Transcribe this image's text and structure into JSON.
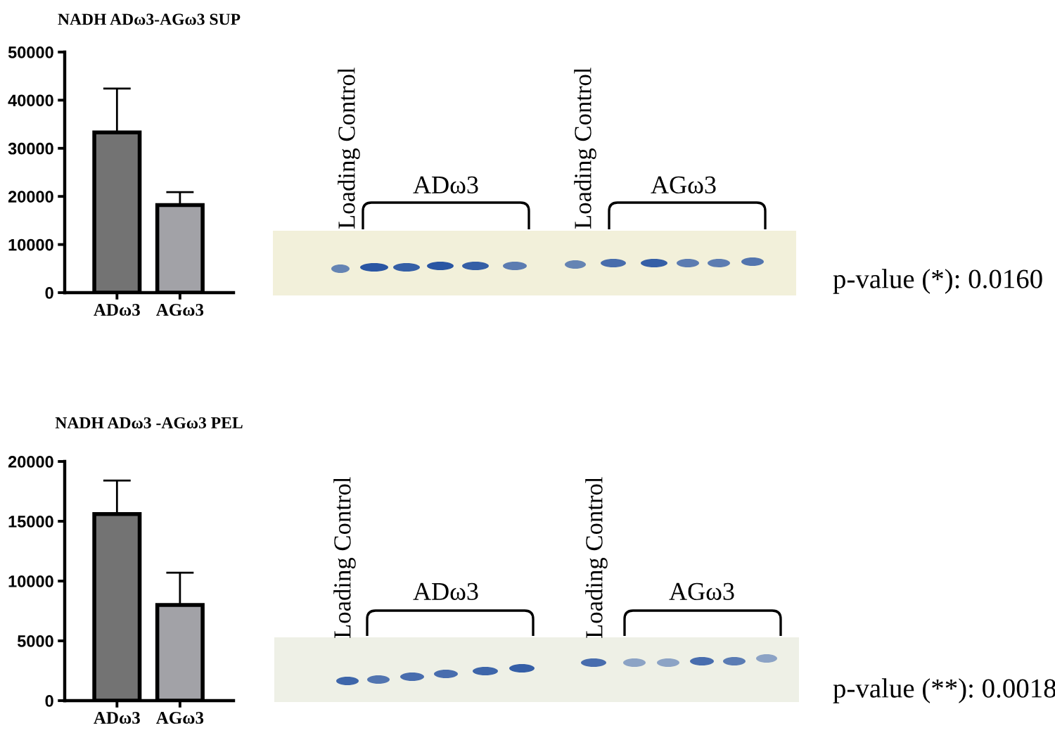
{
  "chart_data": [
    {
      "type": "bar",
      "title": "NADH ADω3-AGω3 SUP",
      "categories": [
        "ADω3",
        "AGω3"
      ],
      "values": [
        33300,
        18200
      ],
      "colors": [
        "#737373",
        "#a2a2a7"
      ],
      "errors": [
        [
          33300,
          42400
        ],
        [
          18200,
          20900
        ]
      ],
      "ylim": [
        0,
        50000
      ],
      "yticks": [
        0,
        10000,
        20000,
        30000,
        40000,
        50000
      ],
      "annotations": [
        "Loading Control",
        "ADω3",
        "Loading Control",
        "AGω3",
        "p-value (*): 0.0160"
      ]
    },
    {
      "type": "bar",
      "title": "NADH ADω3 -AGω3 PEL",
      "categories": [
        "ADω3",
        "AGω3"
      ],
      "values": [
        15600,
        8000
      ],
      "colors": [
        "#737373",
        "#a2a2a7"
      ],
      "errors": [
        [
          15600,
          18400
        ],
        [
          8000,
          10700
        ]
      ],
      "ylim": [
        0,
        20000
      ],
      "yticks": [
        0,
        5000,
        10000,
        15000,
        20000
      ],
      "annotations": [
        "Loading Control",
        "ADω3",
        "Loading Control",
        "AGω3",
        "p-value (**): 0.0018"
      ]
    }
  ]
}
